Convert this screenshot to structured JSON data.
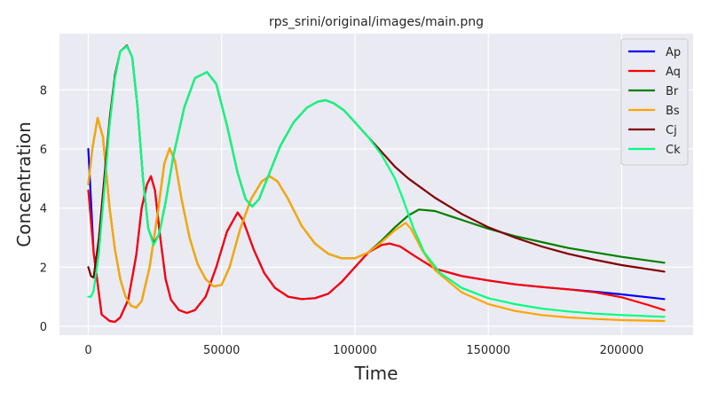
{
  "chart_data": {
    "type": "line",
    "title": "rps_srini/original/images/main.png",
    "xlabel": "Time",
    "ylabel": "Concentration",
    "xlim": [
      -10800,
      226800
    ],
    "ylim": [
      -0.3,
      9.9
    ],
    "xticks": [
      0,
      50000,
      100000,
      150000,
      200000
    ],
    "yticks": [
      0,
      2,
      4,
      6,
      8
    ],
    "grid": true,
    "legend": "top-right",
    "series": [
      {
        "name": "Ap",
        "color": "#0000ff",
        "points": [
          [
            0,
            6.0
          ],
          [
            2000,
            2.5
          ],
          [
            5000,
            0.4
          ],
          [
            8000,
            0.18
          ],
          [
            10000,
            0.15
          ],
          [
            12000,
            0.3
          ],
          [
            15000,
            0.9
          ],
          [
            18000,
            2.4
          ],
          [
            20000,
            4.0
          ],
          [
            22000,
            4.8
          ],
          [
            23500,
            5.08
          ],
          [
            25000,
            4.6
          ],
          [
            27000,
            3.0
          ],
          [
            29000,
            1.6
          ],
          [
            31000,
            0.9
          ],
          [
            34000,
            0.55
          ],
          [
            37000,
            0.45
          ],
          [
            40000,
            0.55
          ],
          [
            44000,
            1.0
          ],
          [
            48000,
            2.0
          ],
          [
            52000,
            3.2
          ],
          [
            56000,
            3.85
          ],
          [
            58000,
            3.6
          ],
          [
            62000,
            2.6
          ],
          [
            66000,
            1.8
          ],
          [
            70000,
            1.3
          ],
          [
            75000,
            1.0
          ],
          [
            80000,
            0.92
          ],
          [
            85000,
            0.95
          ],
          [
            90000,
            1.1
          ],
          [
            95000,
            1.5
          ],
          [
            100000,
            2.0
          ],
          [
            105000,
            2.5
          ],
          [
            110000,
            2.75
          ],
          [
            113000,
            2.8
          ],
          [
            117000,
            2.7
          ],
          [
            122000,
            2.4
          ],
          [
            130000,
            1.95
          ],
          [
            140000,
            1.7
          ],
          [
            150000,
            1.55
          ],
          [
            160000,
            1.42
          ],
          [
            170000,
            1.33
          ],
          [
            180000,
            1.25
          ],
          [
            190000,
            1.17
          ],
          [
            200000,
            1.08
          ],
          [
            210000,
            0.98
          ],
          [
            216000,
            0.92
          ]
        ]
      },
      {
        "name": "Aq",
        "color": "#ff0000",
        "points": [
          [
            0,
            4.6
          ],
          [
            2000,
            2.5
          ],
          [
            5000,
            0.4
          ],
          [
            8000,
            0.18
          ],
          [
            10000,
            0.15
          ],
          [
            12000,
            0.3
          ],
          [
            15000,
            0.9
          ],
          [
            18000,
            2.4
          ],
          [
            20000,
            4.0
          ],
          [
            22000,
            4.8
          ],
          [
            23500,
            5.08
          ],
          [
            25000,
            4.6
          ],
          [
            27000,
            3.0
          ],
          [
            29000,
            1.6
          ],
          [
            31000,
            0.9
          ],
          [
            34000,
            0.55
          ],
          [
            37000,
            0.45
          ],
          [
            40000,
            0.55
          ],
          [
            44000,
            1.0
          ],
          [
            48000,
            2.0
          ],
          [
            52000,
            3.2
          ],
          [
            56000,
            3.85
          ],
          [
            58000,
            3.6
          ],
          [
            62000,
            2.6
          ],
          [
            66000,
            1.8
          ],
          [
            70000,
            1.3
          ],
          [
            75000,
            1.0
          ],
          [
            80000,
            0.92
          ],
          [
            85000,
            0.95
          ],
          [
            90000,
            1.1
          ],
          [
            95000,
            1.5
          ],
          [
            100000,
            2.0
          ],
          [
            105000,
            2.5
          ],
          [
            110000,
            2.75
          ],
          [
            113000,
            2.8
          ],
          [
            117000,
            2.7
          ],
          [
            122000,
            2.4
          ],
          [
            130000,
            1.95
          ],
          [
            140000,
            1.7
          ],
          [
            150000,
            1.55
          ],
          [
            160000,
            1.42
          ],
          [
            170000,
            1.33
          ],
          [
            180000,
            1.25
          ],
          [
            190000,
            1.15
          ],
          [
            200000,
            0.98
          ],
          [
            210000,
            0.72
          ],
          [
            216000,
            0.55
          ]
        ]
      },
      {
        "name": "Br",
        "color": "#008000",
        "points": [
          [
            0,
            4.8
          ],
          [
            1500,
            6.0
          ],
          [
            3500,
            7.05
          ],
          [
            5500,
            6.4
          ],
          [
            8000,
            4.0
          ],
          [
            10000,
            2.6
          ],
          [
            12000,
            1.6
          ],
          [
            14000,
            1.0
          ],
          [
            16000,
            0.7
          ],
          [
            18000,
            0.63
          ],
          [
            20000,
            0.85
          ],
          [
            23000,
            2.0
          ],
          [
            26000,
            3.8
          ],
          [
            28500,
            5.5
          ],
          [
            30500,
            6.02
          ],
          [
            32500,
            5.6
          ],
          [
            35000,
            4.3
          ],
          [
            38000,
            3.0
          ],
          [
            41000,
            2.1
          ],
          [
            44000,
            1.6
          ],
          [
            47000,
            1.35
          ],
          [
            50000,
            1.4
          ],
          [
            53000,
            2.0
          ],
          [
            57000,
            3.3
          ],
          [
            61000,
            4.3
          ],
          [
            65000,
            4.9
          ],
          [
            68000,
            5.08
          ],
          [
            71000,
            4.9
          ],
          [
            75000,
            4.3
          ],
          [
            80000,
            3.4
          ],
          [
            85000,
            2.8
          ],
          [
            90000,
            2.45
          ],
          [
            95000,
            2.3
          ],
          [
            100000,
            2.3
          ],
          [
            105000,
            2.5
          ],
          [
            110000,
            2.9
          ],
          [
            115000,
            3.35
          ],
          [
            120000,
            3.75
          ],
          [
            124000,
            3.95
          ],
          [
            130000,
            3.9
          ],
          [
            140000,
            3.6
          ],
          [
            150000,
            3.3
          ],
          [
            160000,
            3.05
          ],
          [
            170000,
            2.85
          ],
          [
            180000,
            2.65
          ],
          [
            190000,
            2.5
          ],
          [
            200000,
            2.35
          ],
          [
            216000,
            2.15
          ]
        ]
      },
      {
        "name": "Bs",
        "color": "#ffa500",
        "points": [
          [
            0,
            4.8
          ],
          [
            1500,
            6.0
          ],
          [
            3500,
            7.05
          ],
          [
            5500,
            6.4
          ],
          [
            8000,
            4.0
          ],
          [
            10000,
            2.6
          ],
          [
            12000,
            1.6
          ],
          [
            14000,
            1.0
          ],
          [
            16000,
            0.7
          ],
          [
            18000,
            0.63
          ],
          [
            20000,
            0.85
          ],
          [
            23000,
            2.0
          ],
          [
            26000,
            3.8
          ],
          [
            28500,
            5.5
          ],
          [
            30500,
            6.02
          ],
          [
            32500,
            5.6
          ],
          [
            35000,
            4.3
          ],
          [
            38000,
            3.0
          ],
          [
            41000,
            2.1
          ],
          [
            44000,
            1.6
          ],
          [
            47000,
            1.35
          ],
          [
            50000,
            1.4
          ],
          [
            53000,
            2.0
          ],
          [
            57000,
            3.3
          ],
          [
            61000,
            4.3
          ],
          [
            65000,
            4.9
          ],
          [
            68000,
            5.08
          ],
          [
            71000,
            4.9
          ],
          [
            75000,
            4.3
          ],
          [
            80000,
            3.4
          ],
          [
            85000,
            2.8
          ],
          [
            90000,
            2.45
          ],
          [
            95000,
            2.3
          ],
          [
            100000,
            2.3
          ],
          [
            105000,
            2.5
          ],
          [
            110000,
            2.85
          ],
          [
            115000,
            3.25
          ],
          [
            119000,
            3.5
          ],
          [
            121000,
            3.3
          ],
          [
            125000,
            2.6
          ],
          [
            130000,
            1.9
          ],
          [
            140000,
            1.15
          ],
          [
            150000,
            0.75
          ],
          [
            160000,
            0.52
          ],
          [
            170000,
            0.38
          ],
          [
            180000,
            0.3
          ],
          [
            190000,
            0.25
          ],
          [
            200000,
            0.21
          ],
          [
            216000,
            0.18
          ]
        ]
      },
      {
        "name": "Cj",
        "color": "#800000",
        "points": [
          [
            0,
            2.0
          ],
          [
            1000,
            1.7
          ],
          [
            2000,
            1.65
          ],
          [
            4000,
            3.0
          ],
          [
            6000,
            5.0
          ],
          [
            8000,
            7.0
          ],
          [
            10000,
            8.5
          ],
          [
            12000,
            9.3
          ],
          [
            14500,
            9.5
          ],
          [
            16500,
            9.1
          ],
          [
            18500,
            7.4
          ],
          [
            20500,
            5.0
          ],
          [
            22500,
            3.3
          ],
          [
            24500,
            2.8
          ],
          [
            26500,
            3.1
          ],
          [
            29000,
            4.2
          ],
          [
            32000,
            5.8
          ],
          [
            36000,
            7.4
          ],
          [
            40000,
            8.4
          ],
          [
            44500,
            8.6
          ],
          [
            48000,
            8.2
          ],
          [
            52000,
            6.8
          ],
          [
            56000,
            5.2
          ],
          [
            59000,
            4.3
          ],
          [
            61500,
            4.05
          ],
          [
            64000,
            4.3
          ],
          [
            68000,
            5.2
          ],
          [
            72000,
            6.1
          ],
          [
            77000,
            6.9
          ],
          [
            82000,
            7.4
          ],
          [
            86000,
            7.6
          ],
          [
            89000,
            7.65
          ],
          [
            92000,
            7.55
          ],
          [
            96000,
            7.3
          ],
          [
            100000,
            6.9
          ],
          [
            105000,
            6.4
          ],
          [
            110000,
            5.9
          ],
          [
            115000,
            5.4
          ],
          [
            120000,
            5.0
          ],
          [
            130000,
            4.35
          ],
          [
            140000,
            3.8
          ],
          [
            150000,
            3.35
          ],
          [
            160000,
            3.0
          ],
          [
            170000,
            2.7
          ],
          [
            180000,
            2.45
          ],
          [
            190000,
            2.25
          ],
          [
            200000,
            2.07
          ],
          [
            216000,
            1.85
          ]
        ]
      },
      {
        "name": "Ck",
        "color": "#00ff7f",
        "points": [
          [
            0,
            1.0
          ],
          [
            1000,
            1.0
          ],
          [
            2000,
            1.2
          ],
          [
            4000,
            2.5
          ],
          [
            6000,
            4.6
          ],
          [
            8000,
            6.8
          ],
          [
            10000,
            8.4
          ],
          [
            12000,
            9.3
          ],
          [
            14500,
            9.48
          ],
          [
            16500,
            9.1
          ],
          [
            18500,
            7.4
          ],
          [
            20500,
            5.0
          ],
          [
            22500,
            3.3
          ],
          [
            24500,
            2.75
          ],
          [
            26500,
            3.1
          ],
          [
            29000,
            4.2
          ],
          [
            32000,
            5.8
          ],
          [
            36000,
            7.4
          ],
          [
            40000,
            8.4
          ],
          [
            44500,
            8.6
          ],
          [
            48000,
            8.2
          ],
          [
            52000,
            6.8
          ],
          [
            56000,
            5.2
          ],
          [
            59000,
            4.3
          ],
          [
            61500,
            4.05
          ],
          [
            64000,
            4.3
          ],
          [
            68000,
            5.2
          ],
          [
            72000,
            6.1
          ],
          [
            77000,
            6.9
          ],
          [
            82000,
            7.4
          ],
          [
            86000,
            7.6
          ],
          [
            89000,
            7.65
          ],
          [
            92000,
            7.55
          ],
          [
            96000,
            7.3
          ],
          [
            100000,
            6.9
          ],
          [
            105000,
            6.4
          ],
          [
            110000,
            5.8
          ],
          [
            115000,
            5.0
          ],
          [
            118000,
            4.3
          ],
          [
            122000,
            3.3
          ],
          [
            126000,
            2.5
          ],
          [
            132000,
            1.8
          ],
          [
            140000,
            1.3
          ],
          [
            150000,
            0.95
          ],
          [
            160000,
            0.75
          ],
          [
            170000,
            0.6
          ],
          [
            180000,
            0.5
          ],
          [
            190000,
            0.43
          ],
          [
            200000,
            0.38
          ],
          [
            216000,
            0.32
          ]
        ]
      }
    ]
  }
}
